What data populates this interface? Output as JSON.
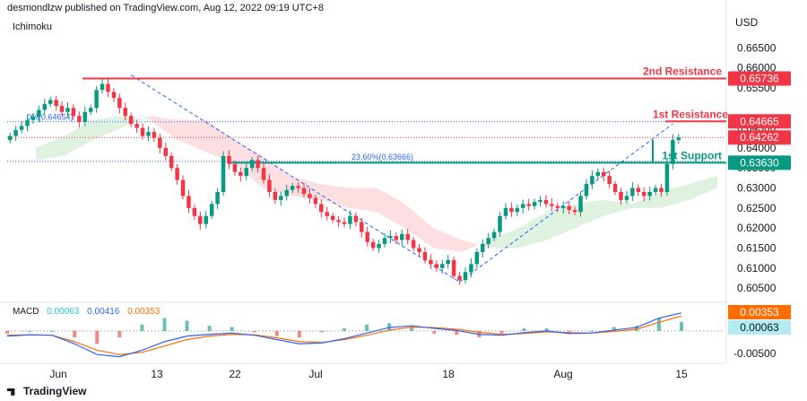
{
  "header": {
    "publisher_line": "desmondlzw published on TradingView.com, Aug 12, 2022 09:19 UTC+8",
    "indicator_label": "Ichimoku",
    "currency": "USD"
  },
  "footer": {
    "brand": "TradingView"
  },
  "macd": {
    "label": "MACD",
    "values": [
      "0.00063",
      "0.00416",
      "0.00353"
    ],
    "colors": [
      "#26c6da",
      "#2962ff",
      "#ff6d00"
    ],
    "axis_badges": [
      {
        "text": "0.00353",
        "color": "#ff6d00"
      },
      {
        "text": "0.00063",
        "color": "#b2ebf2"
      }
    ],
    "axis_ticks": [
      "-0.00500"
    ],
    "macd_series": [
      -0.0012,
      -0.0009,
      -0.001,
      -0.003,
      -0.0055,
      -0.006,
      -0.0045,
      -0.0025,
      -0.0012,
      -0.0008,
      -0.0005,
      -0.001,
      -0.002,
      -0.003,
      -0.0028,
      -0.0018,
      -0.0005,
      0.0008,
      0.0012,
      0.0006,
      0.0001,
      -0.0008,
      -0.001,
      -0.0004,
      0.0,
      -0.0006,
      -0.0005,
      0.0002,
      0.0008,
      0.003,
      0.0042
    ],
    "signal_series": [
      -0.001,
      -0.0009,
      -0.001,
      -0.0025,
      -0.0045,
      -0.0055,
      -0.005,
      -0.0035,
      -0.002,
      -0.0012,
      -0.0008,
      -0.0009,
      -0.0016,
      -0.0025,
      -0.0027,
      -0.002,
      -0.001,
      0.0002,
      0.0009,
      0.0008,
      0.0004,
      -0.0003,
      -0.0008,
      -0.0006,
      -0.0002,
      -0.0004,
      -0.0005,
      -0.0001,
      0.0004,
      0.002,
      0.0035
    ]
  },
  "chart_data": {
    "type": "candlestick",
    "symbol_currency": "USD",
    "ylim": [
      0.603,
      0.668
    ],
    "y_ticks": [
      "0.66500",
      "0.66000",
      "0.65500",
      "0.64500",
      "0.64000",
      "0.63500",
      "0.63000",
      "0.62500",
      "0.62000",
      "0.61500",
      "0.61000",
      "0.60500"
    ],
    "x_ticks": [
      "Jun",
      "13",
      "22",
      "Jul",
      "18",
      "Aug",
      "15"
    ],
    "closes": [
      0.643,
      0.6445,
      0.6455,
      0.647,
      0.6478,
      0.6495,
      0.651,
      0.652,
      0.6505,
      0.649,
      0.65,
      0.648,
      0.6465,
      0.649,
      0.65,
      0.6545,
      0.656,
      0.654,
      0.6525,
      0.65,
      0.648,
      0.646,
      0.645,
      0.643,
      0.644,
      0.6425,
      0.64,
      0.638,
      0.635,
      0.632,
      0.628,
      0.625,
      0.623,
      0.621,
      0.623,
      0.626,
      0.629,
      0.638,
      0.636,
      0.634,
      0.633,
      0.635,
      0.637,
      0.635,
      0.632,
      0.629,
      0.627,
      0.628,
      0.6295,
      0.6305,
      0.63,
      0.6285,
      0.6275,
      0.626,
      0.624,
      0.623,
      0.622,
      0.6215,
      0.621,
      0.623,
      0.6215,
      0.619,
      0.6165,
      0.615,
      0.616,
      0.6175,
      0.618,
      0.617,
      0.6185,
      0.617,
      0.615,
      0.614,
      0.612,
      0.611,
      0.61,
      0.611,
      0.612,
      0.608,
      0.607,
      0.609,
      0.611,
      0.614,
      0.616,
      0.6175,
      0.619,
      0.623,
      0.625,
      0.624,
      0.625,
      0.626,
      0.6255,
      0.6265,
      0.627,
      0.626,
      0.6255,
      0.625,
      0.6255,
      0.6245,
      0.624,
      0.628,
      0.631,
      0.633,
      0.634,
      0.633,
      0.631,
      0.629,
      0.627,
      0.628,
      0.63,
      0.629,
      0.628,
      0.629,
      0.63,
      0.629,
      0.636,
      0.642,
      0.6426
    ],
    "ichimoku_cloud": [
      {
        "lead1": 0.64,
        "lead2": 0.637
      },
      {
        "lead1": 0.643,
        "lead2": 0.638
      },
      {
        "lead1": 0.647,
        "lead2": 0.642
      },
      {
        "lead1": 0.648,
        "lead2": 0.645
      },
      {
        "lead1": 0.647,
        "lead2": 0.648
      },
      {
        "lead1": 0.642,
        "lead2": 0.647
      },
      {
        "lead1": 0.639,
        "lead2": 0.647
      },
      {
        "lead1": 0.636,
        "lead2": 0.642
      },
      {
        "lead1": 0.63,
        "lead2": 0.638
      },
      {
        "lead1": 0.628,
        "lead2": 0.633
      },
      {
        "lead1": 0.627,
        "lead2": 0.631
      },
      {
        "lead1": 0.625,
        "lead2": 0.63
      },
      {
        "lead1": 0.624,
        "lead2": 0.63
      },
      {
        "lead1": 0.62,
        "lead2": 0.626
      },
      {
        "lead1": 0.615,
        "lead2": 0.62
      },
      {
        "lead1": 0.614,
        "lead2": 0.617
      },
      {
        "lead1": 0.617,
        "lead2": 0.615
      },
      {
        "lead1": 0.62,
        "lead2": 0.615
      },
      {
        "lead1": 0.624,
        "lead2": 0.617
      },
      {
        "lead1": 0.626,
        "lead2": 0.62
      },
      {
        "lead1": 0.627,
        "lead2": 0.623
      },
      {
        "lead1": 0.626,
        "lead2": 0.625
      },
      {
        "lead1": 0.629,
        "lead2": 0.625
      },
      {
        "lead1": 0.631,
        "lead2": 0.627
      },
      {
        "lead1": 0.633,
        "lead2": 0.63
      }
    ],
    "levels": [
      {
        "name": "2nd Resistance",
        "value": 0.65736,
        "badge": "0.65736",
        "color": "#f23645"
      },
      {
        "name": "1st Resistance",
        "value": 0.64665,
        "badge": "0.64665",
        "color": "#f23645"
      },
      {
        "name": "1st Support",
        "value": 0.6363,
        "badge": "0.63630",
        "color": "#089981"
      }
    ],
    "fib_labels": [
      {
        "text": "0%(0.64654)",
        "value": 0.64654
      },
      {
        "text": "23.60%(0.63666)",
        "value": 0.63666
      }
    ],
    "fib_level_lines": [
      0.64654,
      0.63666
    ],
    "last_price": {
      "value": 0.64262,
      "badge": "0.64262",
      "color": "#f23645"
    },
    "trendlines": [
      {
        "from": {
          "bar": 21,
          "value": 0.6582
        },
        "to": {
          "bar": 78,
          "value": 0.6065
        }
      },
      {
        "from": {
          "bar": 78,
          "value": 0.6065
        },
        "to": {
          "bar": 115,
          "value": 0.646
        }
      }
    ]
  }
}
